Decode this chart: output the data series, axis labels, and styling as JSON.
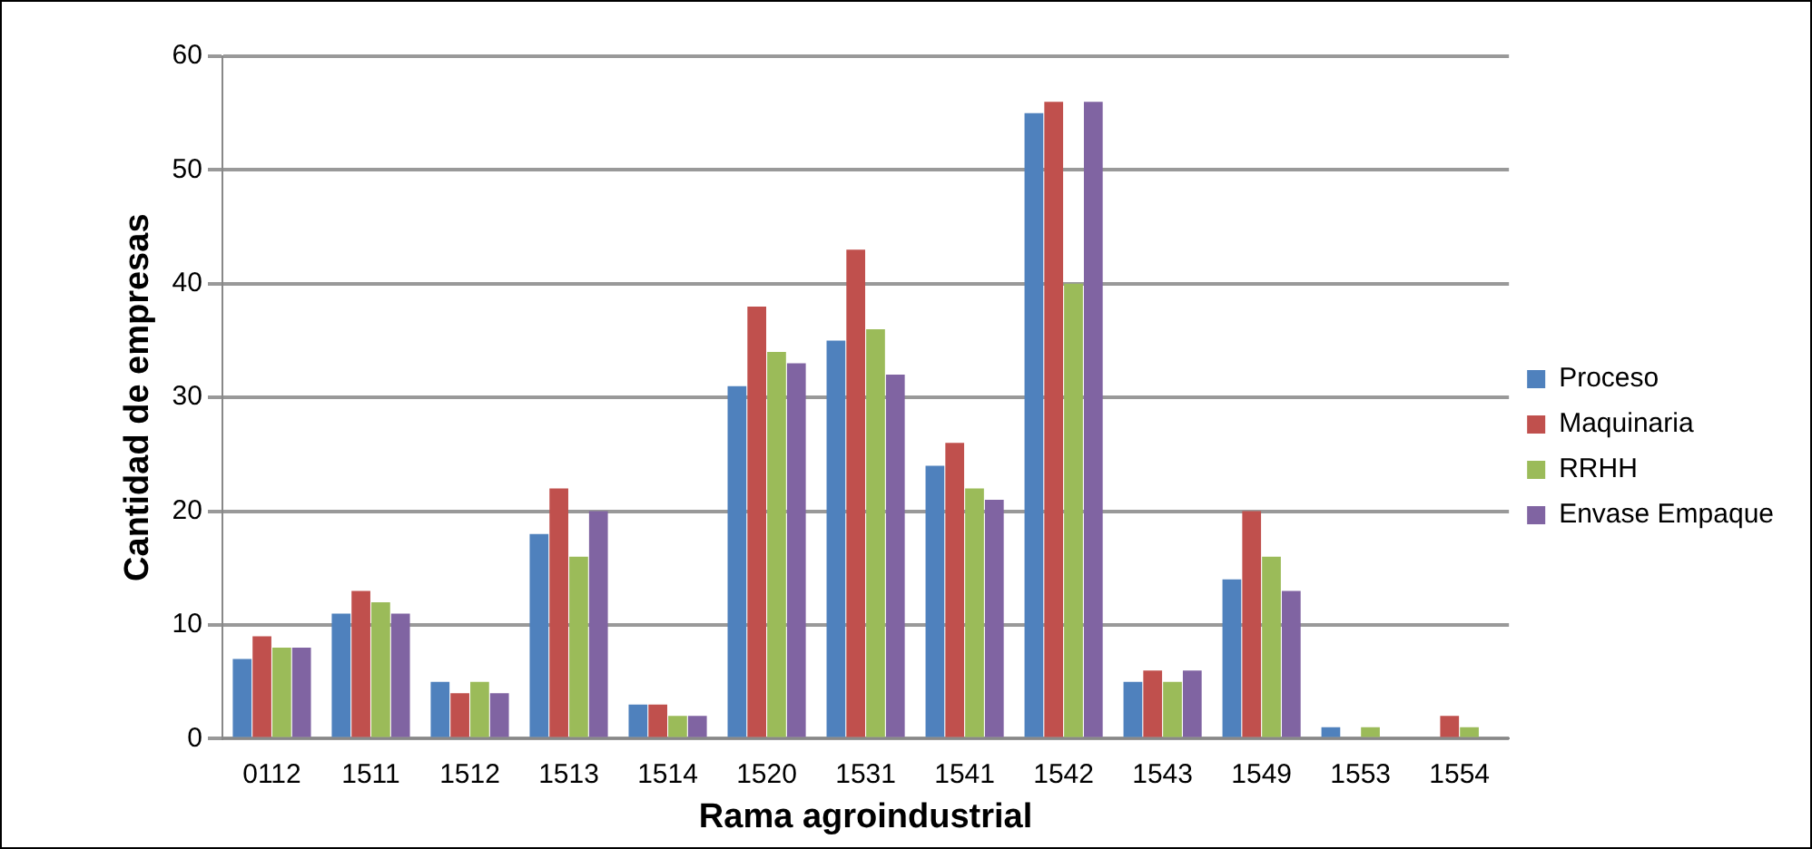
{
  "chart_data": {
    "type": "bar",
    "xlabel": "Rama agroindustrial",
    "ylabel": "Cantidad de empresas",
    "categories": [
      "0112",
      "1511",
      "1512",
      "1513",
      "1514",
      "1520",
      "1531",
      "1541",
      "1542",
      "1543",
      "1549",
      "1553",
      "1554"
    ],
    "series": [
      {
        "name": "Proceso",
        "color": "#4f81bd",
        "values": [
          7,
          11,
          5,
          18,
          3,
          31,
          35,
          24,
          55,
          5,
          14,
          1,
          0
        ]
      },
      {
        "name": "Maquinaria",
        "color": "#c0504d",
        "values": [
          9,
          13,
          4,
          22,
          3,
          38,
          43,
          26,
          56,
          6,
          20,
          0,
          2
        ]
      },
      {
        "name": "RRHH",
        "color": "#9bbb59",
        "values": [
          8,
          12,
          5,
          16,
          2,
          34,
          36,
          22,
          40,
          5,
          16,
          1,
          1
        ]
      },
      {
        "name": "Envase Empaque",
        "color": "#8064a2",
        "values": [
          8,
          11,
          4,
          20,
          2,
          33,
          32,
          21,
          56,
          6,
          13,
          0,
          0
        ]
      }
    ],
    "ylim": [
      0,
      60
    ],
    "yticks": [
      0,
      10,
      20,
      30,
      40,
      50,
      60
    ],
    "grid": "y",
    "legend": "right"
  }
}
